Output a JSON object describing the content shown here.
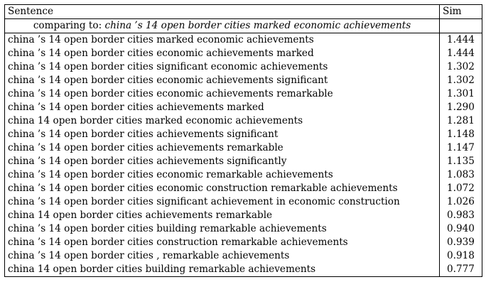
{
  "header": {
    "sentence_label": "Sentence",
    "sim_label": "Sim"
  },
  "comparing": {
    "prefix": "comparing to:",
    "query": "china ’s 14 open border cities marked economic achievements"
  },
  "rows": [
    {
      "sentence": "china ’s 14 open border cities marked economic achievements",
      "sim": "1.444"
    },
    {
      "sentence": "china ’s 14 open border cities economic achievements marked",
      "sim": "1.444"
    },
    {
      "sentence": "china ’s 14 open border cities significant economic achievements",
      "sim": "1.302"
    },
    {
      "sentence": "china ’s 14 open border cities economic achievements significant",
      "sim": "1.302"
    },
    {
      "sentence": "china ’s 14 open border cities economic achievements remarkable",
      "sim": "1.301"
    },
    {
      "sentence": "china ’s 14 open border cities achievements marked",
      "sim": "1.290"
    },
    {
      "sentence": "china 14 open border cities marked economic achievements",
      "sim": "1.281"
    },
    {
      "sentence": "china ’s 14 open border cities achievements significant",
      "sim": "1.148"
    },
    {
      "sentence": "china ’s 14 open border cities achievements remarkable",
      "sim": "1.147"
    },
    {
      "sentence": "china ’s 14 open border cities achievements significantly",
      "sim": "1.135"
    },
    {
      "sentence": "china ’s 14 open border cities economic remarkable achievements",
      "sim": "1.083"
    },
    {
      "sentence": "china ’s 14 open border cities economic construction remarkable achievements",
      "sim": "1.072"
    },
    {
      "sentence": "china ’s 14 open border cities significant achievement in economic construction",
      "sim": "1.026"
    },
    {
      "sentence": "china 14 open border cities achievements remarkable",
      "sim": "0.983"
    },
    {
      "sentence": "china ’s 14 open border cities building remarkable achievements",
      "sim": "0.940"
    },
    {
      "sentence": "china ’s 14 open border cities construction remarkable achievements",
      "sim": "0.939"
    },
    {
      "sentence": "china ’s 14 open border cities , remarkable achievements",
      "sim": "0.918"
    },
    {
      "sentence": "china 14 open border cities building remarkable achievements",
      "sim": "0.777"
    }
  ]
}
